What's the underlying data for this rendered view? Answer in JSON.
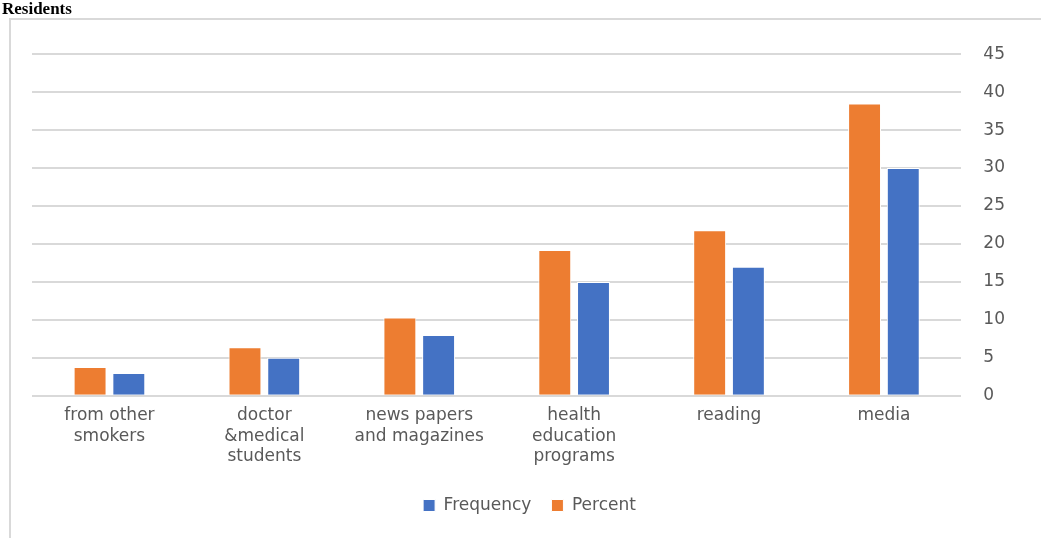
{
  "chart_data": {
    "type": "bar",
    "title": "Residents",
    "categories": [
      "from other smokers",
      "doctor &medical students",
      "news papers and magazines",
      "health education programs",
      "reading",
      "media"
    ],
    "series": [
      {
        "name": "Percent",
        "color": "#ed7d31",
        "values": [
          3.8,
          6.4,
          10.3,
          19.2,
          21.8,
          38.5
        ]
      },
      {
        "name": "Frequency",
        "color": "#4472c4",
        "values": [
          3,
          5,
          8,
          15,
          17,
          30
        ]
      }
    ],
    "ylim": [
      0,
      45
    ],
    "yticks": [
      0,
      5,
      10,
      15,
      20,
      25,
      30,
      35,
      40,
      45
    ],
    "grid": "y",
    "legend": "bottom"
  }
}
